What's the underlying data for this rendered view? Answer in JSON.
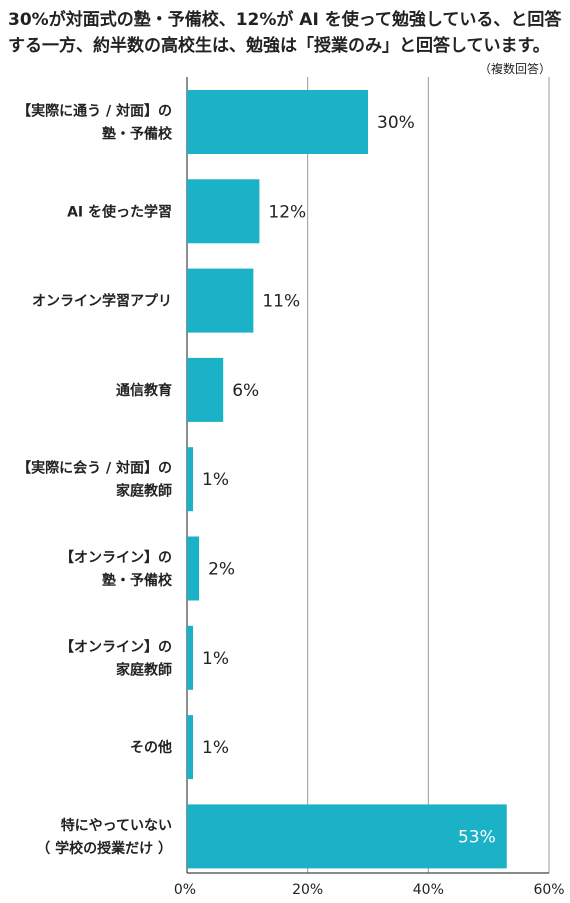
{
  "chart_data": {
    "type": "bar",
    "orientation": "horizontal",
    "title_lines": [
      "30%が対面式の塾・予備校、12%が AI を使って勉強している、と回答",
      "する一方、約半数の高校生は、勉強は「授業のみ」と回答しています。"
    ],
    "note": "（複数回答）",
    "categories": [
      [
        "【実際に通う / 対面】の",
        "塾・予備校"
      ],
      [
        "AI を使った学習"
      ],
      [
        "オンライン学習アプリ"
      ],
      [
        "通信教育"
      ],
      [
        "【実際に会う / 対面】の",
        "家庭教師"
      ],
      [
        "【オンライン】の",
        "塾・予備校"
      ],
      [
        "【オンライン】の",
        "家庭教師"
      ],
      [
        "その他"
      ],
      [
        "特にやっていない",
        "（ 学校の授業だけ ）"
      ]
    ],
    "values": [
      30,
      12,
      11,
      6,
      1,
      2,
      1,
      1,
      53
    ],
    "value_labels": [
      "30%",
      "12%",
      "11%",
      "6%",
      "1%",
      "2%",
      "1%",
      "1%",
      "53%"
    ],
    "xlim": [
      0,
      60
    ],
    "x_ticks": [
      "0%",
      "20%",
      "40%",
      "60%"
    ],
    "grid": true,
    "colors": {
      "bar": "#1bb1c6",
      "grid": "#999999",
      "text": "#222222"
    }
  }
}
